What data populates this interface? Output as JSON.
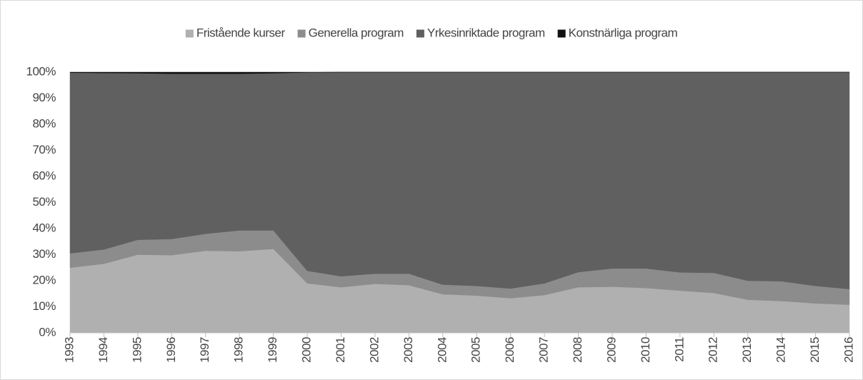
{
  "chart_data": {
    "type": "stacked_area",
    "categories": [
      "1993",
      "1994",
      "1995",
      "1996",
      "1997",
      "1998",
      "1999",
      "2000",
      "2001",
      "2002",
      "2003",
      "2004",
      "2005",
      "2006",
      "2007",
      "2008",
      "2009",
      "2010",
      "2011",
      "2012",
      "2013",
      "2014",
      "2015",
      "2016"
    ],
    "series": [
      {
        "name": "Fristående kurser",
        "color": "#b0b0b0",
        "values": [
          25,
          26.5,
          30,
          29.8,
          31.5,
          31.3,
          32.2,
          19,
          17.5,
          18.8,
          18.3,
          14.8,
          14.3,
          13.3,
          14.5,
          17.5,
          17.7,
          17.2,
          16.2,
          15.3,
          12.7,
          12.2,
          11.3,
          10.8
        ]
      },
      {
        "name": "Generella program",
        "color": "#8c8c8c",
        "values": [
          5.5,
          5.5,
          5.7,
          6.2,
          6.5,
          8,
          7.1,
          4.8,
          4.2,
          3.9,
          4.4,
          3.7,
          3.7,
          3.7,
          4.5,
          5.8,
          7,
          7.5,
          7,
          7.7,
          7.3,
          7.6,
          6.7,
          6
        ]
      },
      {
        "name": "Yrkesinriktade program",
        "color": "#606060",
        "values": [
          69.3,
          67.7,
          63.9,
          63.4,
          61.4,
          60.1,
          60.3,
          76.1,
          78.3,
          77.3,
          77.3,
          81.5,
          82,
          83,
          81,
          76.7,
          75.3,
          75.3,
          76.8,
          77,
          80,
          80.2,
          82,
          83.2
        ]
      },
      {
        "name": "Konstnärliga program",
        "color": "#111111",
        "values": [
          0.2,
          0.3,
          0.4,
          0.6,
          0.6,
          0.6,
          0.4,
          0.1,
          0,
          0,
          0,
          0,
          0,
          0,
          0,
          0,
          0,
          0,
          0,
          0,
          0,
          0,
          0,
          0
        ]
      }
    ],
    "ylim": [
      0,
      100
    ],
    "yticks": [
      {
        "value": 0,
        "label": "0%"
      },
      {
        "value": 10,
        "label": "10%"
      },
      {
        "value": 20,
        "label": "20%"
      },
      {
        "value": 30,
        "label": "30%"
      },
      {
        "value": 40,
        "label": "40%"
      },
      {
        "value": 50,
        "label": "50%"
      },
      {
        "value": 60,
        "label": "60%"
      },
      {
        "value": 70,
        "label": "70%"
      },
      {
        "value": 80,
        "label": "80%"
      },
      {
        "value": 90,
        "label": "90%"
      },
      {
        "value": 100,
        "label": "100%"
      }
    ],
    "legend": "top"
  }
}
